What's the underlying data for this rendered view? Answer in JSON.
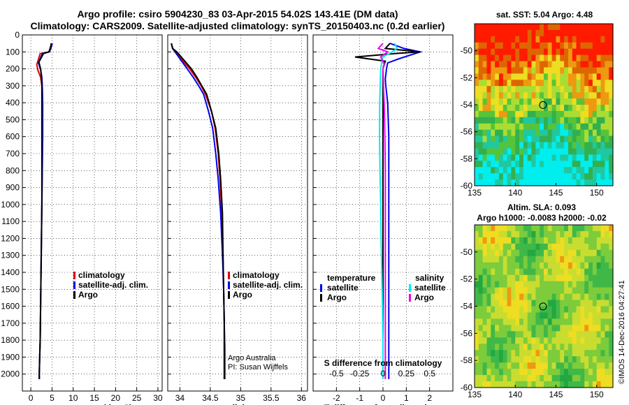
{
  "header": {
    "title_line1": "Argo profile: csiro 5904230_83 03-Apr-2015 54.02S 143.41E (DM data)",
    "title_line2": "Climatology: CARS2009. Satellite-adjusted climatology: synTS_20150403.nc (0.2d earlier)"
  },
  "colors": {
    "climatology": "#dd0000",
    "satellite": "#0000ee",
    "argo": "#000000",
    "satellite_s": "#00eeee",
    "argo_s": "#ee00ee"
  },
  "chart_data": [
    {
      "type": "line",
      "id": "temperature",
      "xlabel": "temperature (deg C)",
      "ylabel": "",
      "xlim": [
        -2,
        31
      ],
      "ylim": [
        2100,
        0
      ],
      "x_ticks": [
        0,
        5,
        10,
        15,
        20,
        25,
        30
      ],
      "y_ticks": [
        0,
        100,
        200,
        300,
        400,
        500,
        600,
        700,
        800,
        900,
        1000,
        1100,
        1200,
        1300,
        1400,
        1500,
        1600,
        1700,
        1800,
        1900,
        2000
      ],
      "grid": "dotted",
      "legend_position": "right",
      "legend": [
        "climatology",
        "satellite-adj. clim.",
        "Argo"
      ],
      "series": [
        {
          "name": "climatology",
          "color": "#dd0000",
          "x": [
            4.9,
            4.5,
            4.3,
            2.2,
            1.4,
            1.7,
            2.3,
            2.6,
            2.7,
            2.7,
            2.7,
            2.6,
            2.5,
            2.4,
            2.3,
            2.2,
            2.1,
            2.0,
            2.0
          ],
          "y": [
            50,
            80,
            100,
            110,
            175,
            210,
            250,
            300,
            400,
            600,
            800,
            1000,
            1200,
            1400,
            1600,
            1800,
            1900,
            2000,
            2030
          ]
        },
        {
          "name": "satellite-adj. clim.",
          "color": "#0000ee",
          "x": [
            5.1,
            4.7,
            4.4,
            2.7,
            1.8,
            2.3,
            2.6,
            2.7,
            2.8,
            2.8,
            2.7,
            2.6,
            2.5,
            2.4,
            2.3,
            2.2,
            2.1,
            2.0,
            2.0
          ],
          "y": [
            50,
            80,
            100,
            110,
            165,
            205,
            250,
            300,
            400,
            600,
            800,
            1000,
            1200,
            1400,
            1600,
            1800,
            1900,
            2000,
            2030
          ]
        },
        {
          "name": "Argo",
          "color": "#000000",
          "x": [
            4.8,
            4.7,
            4.2,
            3.0,
            1.9,
            2.3,
            2.5,
            2.6,
            2.6,
            2.6,
            2.6,
            2.6,
            2.5,
            2.4,
            2.3,
            2.2,
            2.1,
            2.0,
            2.0
          ],
          "y": [
            50,
            80,
            100,
            110,
            160,
            200,
            250,
            300,
            400,
            600,
            800,
            1000,
            1200,
            1400,
            1600,
            1800,
            1900,
            2000,
            2030
          ]
        }
      ]
    },
    {
      "type": "line",
      "id": "salinity",
      "xlabel": "salinity",
      "ylabel": "",
      "xlim": [
        33.8,
        36.1
      ],
      "ylim": [
        2100,
        0
      ],
      "x_ticks": [
        34,
        34.5,
        35,
        35.5,
        36
      ],
      "grid": "dotted",
      "legend_position": "right",
      "legend": [
        "climatology",
        "satellite-adj. clim.",
        "Argo"
      ],
      "annotations": [
        "Argo Australia",
        "PI: Susan Wijffels"
      ],
      "series": [
        {
          "name": "climatology",
          "color": "#dd0000",
          "x": [
            33.86,
            33.88,
            33.93,
            34.04,
            34.16,
            34.26,
            34.35,
            34.42,
            34.52,
            34.58,
            34.63,
            34.66,
            34.69,
            34.71,
            34.72,
            34.73,
            34.73,
            34.73,
            34.73
          ],
          "y": [
            50,
            80,
            100,
            150,
            200,
            250,
            300,
            350,
            450,
            550,
            700,
            850,
            1050,
            1300,
            1500,
            1700,
            1850,
            2000,
            2030
          ]
        },
        {
          "name": "satellite-adj. clim.",
          "color": "#0000ee",
          "x": [
            33.86,
            33.88,
            33.92,
            34.02,
            34.12,
            34.22,
            34.31,
            34.39,
            34.47,
            34.54,
            34.59,
            34.63,
            34.67,
            34.7,
            34.72,
            34.73,
            34.74,
            34.74,
            34.74
          ],
          "y": [
            50,
            80,
            100,
            150,
            200,
            250,
            300,
            350,
            450,
            550,
            700,
            850,
            1050,
            1300,
            1500,
            1700,
            1850,
            2000,
            2030
          ]
        },
        {
          "name": "Argo",
          "color": "#000000",
          "x": [
            33.86,
            33.88,
            33.95,
            34.07,
            34.19,
            34.28,
            34.36,
            34.44,
            34.52,
            34.59,
            34.64,
            34.67,
            34.7,
            34.71,
            34.72,
            34.73,
            34.73,
            34.73,
            34.73
          ],
          "y": [
            50,
            80,
            100,
            150,
            200,
            250,
            300,
            350,
            450,
            550,
            700,
            850,
            1050,
            1300,
            1500,
            1700,
            1850,
            2000,
            2030
          ]
        }
      ]
    },
    {
      "type": "line",
      "id": "difference",
      "xlabel": "T difference from climatology",
      "xlabel_top": "S difference from climatology",
      "xlim": [
        -3,
        3
      ],
      "ylim": [
        2100,
        0
      ],
      "x_ticks": [
        -2,
        -1,
        0,
        1,
        2
      ],
      "x_tick_labels_top": [
        "-0.5",
        "-0.25",
        "0",
        "0.25",
        "0.5"
      ],
      "grid": "dotted",
      "legend_titles": [
        "temperature",
        "salinity"
      ],
      "legend_left": [
        "satellite",
        "Argo"
      ],
      "legend_right": [
        "satellite",
        "Argo"
      ],
      "series": [
        {
          "name": "T satellite",
          "color": "#0000ee",
          "x": [
            0.3,
            0.9,
            1.6,
            0.7,
            0.2,
            0.15,
            0.1,
            0.12,
            0.2,
            0.25,
            0.25,
            0.25,
            0.25,
            0.25,
            0.25,
            0.25,
            0.25
          ],
          "y": [
            50,
            80,
            100,
            140,
            165,
            200,
            260,
            300,
            400,
            600,
            800,
            1000,
            1200,
            1400,
            1600,
            1800,
            2030
          ]
        },
        {
          "name": "T Argo",
          "color": "#000000",
          "x": [
            0.3,
            0.1,
            1.6,
            0.5,
            -1.2,
            0.1,
            0.0,
            0.0,
            0.0,
            0.0,
            0.0,
            0.0,
            0.0,
            0.0,
            0.0,
            0.0,
            0.0
          ],
          "y": [
            50,
            80,
            100,
            110,
            130,
            155,
            200,
            300,
            400,
            600,
            800,
            1000,
            1200,
            1400,
            1600,
            1800,
            2030
          ]
        },
        {
          "name": "S satellite",
          "color": "#00eeee",
          "x": [
            0.5,
            0.6,
            0.4,
            0.0,
            -0.05,
            -0.1,
            -0.12,
            -0.14,
            -0.15,
            -0.13,
            -0.1,
            -0.08,
            -0.05,
            -0.02,
            0.0,
            0.0,
            0.0
          ],
          "y": [
            50,
            80,
            100,
            130,
            160,
            200,
            300,
            400,
            600,
            800,
            1000,
            1200,
            1400,
            1600,
            1800,
            1900,
            2030
          ]
        },
        {
          "name": "S Argo",
          "color": "#ee00ee",
          "x": [
            0.0,
            -0.2,
            0.2,
            -0.1,
            0.05,
            0.0,
            0.02,
            0.05,
            0.08,
            0.1,
            0.1,
            0.1,
            0.1,
            0.1,
            0.1,
            0.1,
            0.1
          ],
          "y": [
            50,
            80,
            100,
            130,
            170,
            200,
            300,
            400,
            600,
            800,
            1000,
            1200,
            1400,
            1600,
            1800,
            1900,
            2030
          ]
        }
      ]
    },
    {
      "type": "heatmap",
      "id": "sst_map",
      "title": "sat. SST: 5.04  Argo: 4.48",
      "xlim": [
        135,
        152
      ],
      "ylim": [
        -60,
        -48
      ],
      "x_ticks": [
        135,
        140,
        145,
        150
      ],
      "y_ticks": [
        -50,
        -52,
        -54,
        -56,
        -58,
        -60
      ],
      "marker": {
        "lon": 143.41,
        "lat": -54.02
      }
    },
    {
      "type": "heatmap",
      "id": "sla_map",
      "title": "Altim. SLA: 0.093",
      "subtitle": "Argo h1000: -0.0083 h2000: -0.02",
      "xlim": [
        135,
        152
      ],
      "ylim": [
        -60,
        -48
      ],
      "x_ticks": [
        135,
        140,
        145,
        150
      ],
      "y_ticks": [
        -50,
        -52,
        -54,
        -56,
        -58,
        -60
      ],
      "marker": {
        "lon": 143.41,
        "lat": -54.02
      }
    }
  ],
  "footer": {
    "stamp": "©IMOS 14-Dec-2016 04:27:41"
  }
}
